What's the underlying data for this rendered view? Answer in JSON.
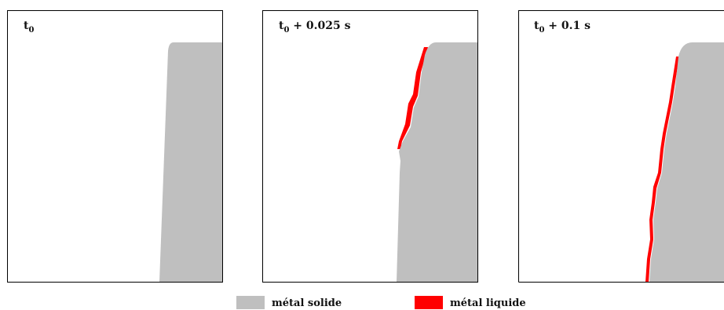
{
  "panels": [
    {
      "label_main": "t",
      "label_sub": "0",
      "label_rest": ""
    },
    {
      "label_main": "t",
      "label_sub": "0",
      "label_rest": " + 0.025 s"
    },
    {
      "label_main": "t",
      "label_sub": "0",
      "label_rest": " + 0.1 s"
    }
  ],
  "legend": {
    "solid": {
      "label": "métal solide",
      "color": "#bfbfbf"
    },
    "liquid": {
      "label": "métal liquide",
      "color": "#ff0000"
    }
  }
}
